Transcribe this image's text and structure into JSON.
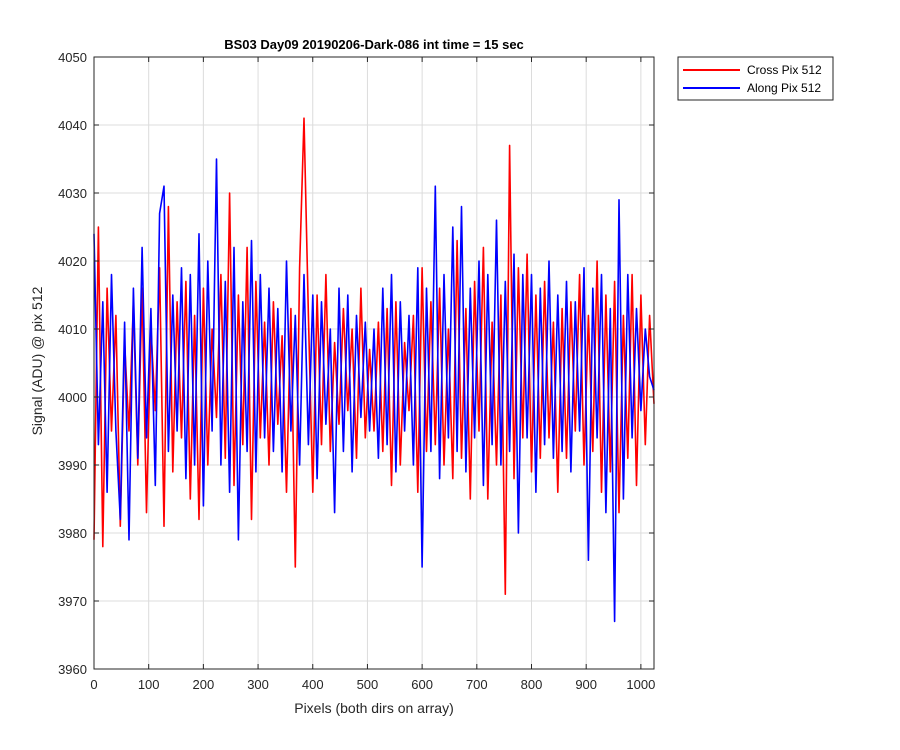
{
  "chart_data": {
    "type": "line",
    "title": "BS03 Day09 20190206-Dark-086 int time = 15 sec",
    "xlabel": "Pixels (both dirs on array)",
    "ylabel": "Signal (ADU) @ pix 512",
    "xlim": [
      0,
      1024
    ],
    "ylim": [
      3960,
      4050
    ],
    "xticks": [
      0,
      100,
      200,
      300,
      400,
      500,
      600,
      700,
      800,
      900,
      1000
    ],
    "yticks": [
      3960,
      3970,
      3980,
      3990,
      4000,
      4010,
      4020,
      4030,
      4040,
      4050
    ],
    "grid": true,
    "legend_position": "outside-top-right",
    "x": [
      0,
      8,
      16,
      24,
      32,
      40,
      48,
      56,
      64,
      72,
      80,
      88,
      96,
      104,
      112,
      120,
      128,
      136,
      144,
      152,
      160,
      168,
      176,
      184,
      192,
      200,
      208,
      216,
      224,
      232,
      240,
      248,
      256,
      264,
      272,
      280,
      288,
      296,
      304,
      312,
      320,
      328,
      336,
      344,
      352,
      360,
      368,
      376,
      384,
      392,
      400,
      408,
      416,
      424,
      432,
      440,
      448,
      456,
      464,
      472,
      480,
      488,
      496,
      504,
      512,
      520,
      528,
      536,
      544,
      552,
      560,
      568,
      576,
      584,
      592,
      600,
      608,
      616,
      624,
      632,
      640,
      648,
      656,
      664,
      672,
      680,
      688,
      696,
      704,
      712,
      720,
      728,
      736,
      744,
      752,
      760,
      768,
      776,
      784,
      792,
      800,
      808,
      816,
      824,
      832,
      840,
      848,
      856,
      864,
      872,
      880,
      888,
      896,
      904,
      912,
      920,
      928,
      936,
      944,
      952,
      960,
      968,
      976,
      984,
      992,
      1000,
      1008,
      1016,
      1024
    ],
    "series": [
      {
        "name": "Cross Pix 512",
        "color": "#ff0000",
        "values": [
          3979,
          4025,
          3978,
          4016,
          3995,
          4012,
          3981,
          4008,
          3995,
          4014,
          3990,
          4016,
          3983,
          4010,
          3998,
          4019,
          3981,
          4028,
          3989,
          4014,
          3994,
          4017,
          3985,
          4012,
          3982,
          4016,
          3990,
          4010,
          3997,
          4018,
          3991,
          4030,
          3987,
          4015,
          3993,
          4022,
          3982,
          4017,
          3994,
          4011,
          3990,
          4014,
          3996,
          4009,
          3986,
          4013,
          3975,
          4019,
          4041,
          4012,
          3986,
          4015,
          3993,
          4018,
          3992,
          4008,
          3996,
          4013,
          3998,
          4010,
          3991,
          4016,
          3994,
          4007,
          3995,
          4011,
          3992,
          4013,
          3987,
          4014,
          3990,
          4008,
          3998,
          4012,
          3986,
          4019,
          3992,
          4014,
          3993,
          4016,
          3990,
          4010,
          3988,
          4023,
          3991,
          4013,
          3985,
          4017,
          3995,
          4022,
          3985,
          4011,
          3990,
          4015,
          3971,
          4037,
          3988,
          4019,
          3994,
          4021,
          3989,
          4015,
          3991,
          4017,
          3994,
          4011,
          3986,
          4013,
          3991,
          4014,
          3995,
          4018,
          3990,
          4012,
          3992,
          4020,
          3986,
          4015,
          3989,
          4017,
          3983,
          4012,
          3991,
          4018,
          3987,
          4015,
          3993,
          4012,
          3999
        ]
      },
      {
        "name": "Along Pix 512",
        "color": "#0000ff",
        "values": [
          4024,
          3993,
          4014,
          3986,
          4018,
          3995,
          3982,
          4011,
          3979,
          4016,
          3991,
          4022,
          3994,
          4013,
          3987,
          4027,
          4031,
          3992,
          4015,
          3995,
          4019,
          3988,
          4018,
          3990,
          4024,
          3984,
          4020,
          3995,
          4035,
          3990,
          4017,
          3986,
          4022,
          3979,
          4014,
          3992,
          4023,
          3989,
          4018,
          3994,
          4016,
          3992,
          4013,
          3989,
          4020,
          3995,
          4012,
          3990,
          4018,
          3993,
          4015,
          3988,
          4014,
          3996,
          4010,
          3983,
          4016,
          3992,
          4015,
          3989,
          4012,
          3997,
          4011,
          3995,
          4010,
          3991,
          4016,
          3993,
          4018,
          3989,
          4014,
          3995,
          4012,
          3990,
          4019,
          3975,
          4016,
          3992,
          4031,
          3988,
          4018,
          3994,
          4025,
          3992,
          4028,
          3989,
          4016,
          3994,
          4020,
          3987,
          4018,
          3993,
          4026,
          3990,
          4017,
          3992,
          4021,
          3980,
          4018,
          3994,
          4018,
          3986,
          4016,
          3993,
          4020,
          3991,
          4015,
          3992,
          4017,
          3989,
          4014,
          3995,
          4019,
          3976,
          4016,
          3994,
          4018,
          3983,
          4013,
          3967,
          4029,
          3985,
          4018,
          3994,
          4013,
          3998,
          4010,
          4003,
          4001
        ]
      }
    ]
  }
}
